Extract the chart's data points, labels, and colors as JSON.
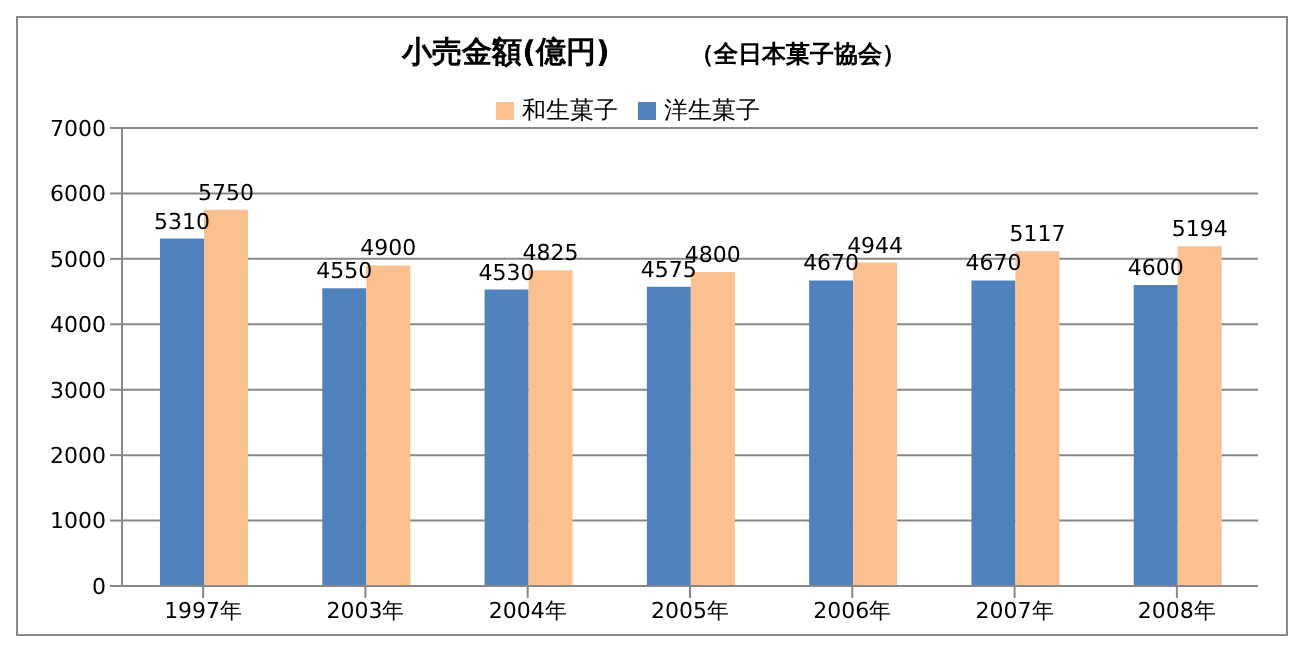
{
  "chart_data": {
    "type": "bar",
    "title": "小売金額(億円)",
    "annotations": [
      "（全日本菓子協会）"
    ],
    "categories": [
      "1997年",
      "2003年",
      "2004年",
      "2005年",
      "2006年",
      "2007年",
      "2008年"
    ],
    "series": [
      {
        "name": "洋生菓子",
        "color": "#4f81bd",
        "values": [
          5310,
          4550,
          4530,
          4575,
          4670,
          4670,
          4600
        ]
      },
      {
        "name": "和生菓子",
        "color": "#fac090",
        "values": [
          5750,
          4900,
          4825,
          4800,
          4944,
          5117,
          5194
        ]
      }
    ],
    "ylim": [
      0,
      7000
    ],
    "yticks": [
      0,
      1000,
      2000,
      3000,
      4000,
      5000,
      6000,
      7000
    ],
    "grid": "y",
    "legend": "top",
    "data_labels": true
  }
}
